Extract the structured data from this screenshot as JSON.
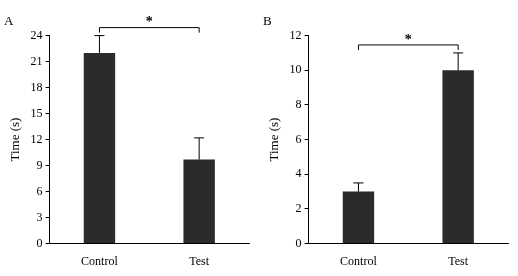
{
  "chart_data": [
    {
      "type": "bar",
      "title": "A",
      "categories": [
        "Control",
        "Test"
      ],
      "values": [
        22,
        9.7
      ],
      "errors": [
        2,
        2.5
      ],
      "color": "#2b2b2b",
      "y_label": "Time (s)",
      "ylim": [
        0,
        24
      ],
      "yticks": [
        0,
        3,
        6,
        9,
        12,
        15,
        18,
        21,
        24
      ],
      "grid": false,
      "annotations": [
        {
          "text": "*",
          "from": "Control",
          "to": "Test"
        }
      ]
    },
    {
      "type": "bar",
      "title": "B",
      "categories": [
        "Control",
        "Test"
      ],
      "values": [
        3,
        10
      ],
      "errors": [
        0.5,
        1
      ],
      "color": "#2b2b2b",
      "y_label": "Time (s)",
      "ylim": [
        0,
        12
      ],
      "yticks": [
        0,
        2,
        4,
        6,
        8,
        10,
        12
      ],
      "grid": false,
      "annotations": [
        {
          "text": "*",
          "from": "Control",
          "to": "Test"
        }
      ]
    }
  ]
}
